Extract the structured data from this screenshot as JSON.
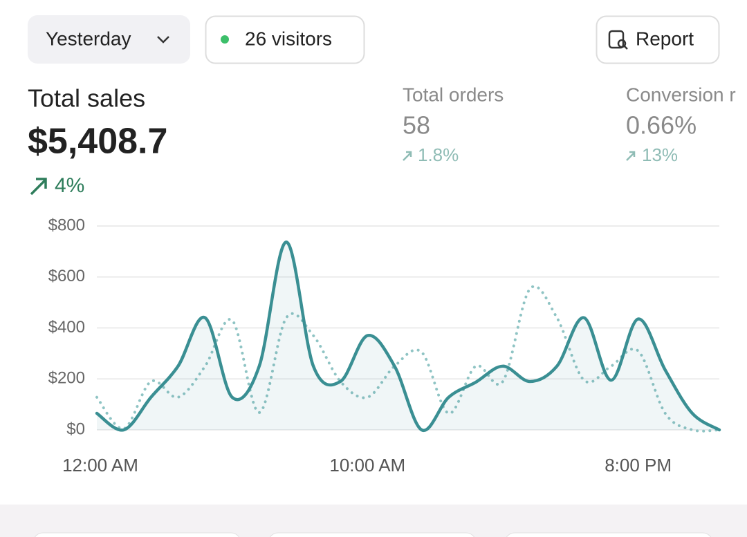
{
  "header": {
    "period": "Yesterday",
    "visitors": "26 visitors",
    "report": "Report"
  },
  "metrics": [
    {
      "label": "Total sales",
      "value": "$5,408.7",
      "change": "4%"
    },
    {
      "label": "Total orders",
      "value": "58",
      "change": "1.8%"
    },
    {
      "label": "Conversion r",
      "value": "0.66%",
      "change": "13%"
    }
  ],
  "chart_data": {
    "type": "line",
    "categories": [
      "12:00 AM",
      null,
      null,
      null,
      null,
      null,
      null,
      null,
      null,
      null,
      "10:00 AM",
      null,
      null,
      null,
      null,
      null,
      null,
      null,
      null,
      null,
      "8:00 PM",
      null,
      null,
      null
    ],
    "series": [
      {
        "color": "#3a8f93",
        "style": "solid",
        "values": [
          65,
          0,
          128,
          250,
          440,
          128,
          250,
          737,
          250,
          190,
          370,
          250,
          0,
          128,
          187,
          250,
          190,
          250,
          440,
          195,
          435,
          235,
          65,
          0
        ]
      },
      {
        "color": "#8fc4c4",
        "style": "dotted",
        "values": [
          128,
          5,
          190,
          128,
          250,
          430,
          68,
          440,
          370,
          190,
          128,
          250,
          305,
          65,
          250,
          190,
          553,
          440,
          195,
          250,
          310,
          65,
          0,
          0
        ]
      }
    ],
    "ylim": [
      0,
      800
    ],
    "yticks": [
      {
        "value": 0,
        "label": "$0"
      },
      {
        "value": 200,
        "label": "$200"
      },
      {
        "value": 400,
        "label": "$400"
      },
      {
        "value": 600,
        "label": "$600"
      },
      {
        "value": 800,
        "label": "$800"
      }
    ],
    "grid": true
  }
}
